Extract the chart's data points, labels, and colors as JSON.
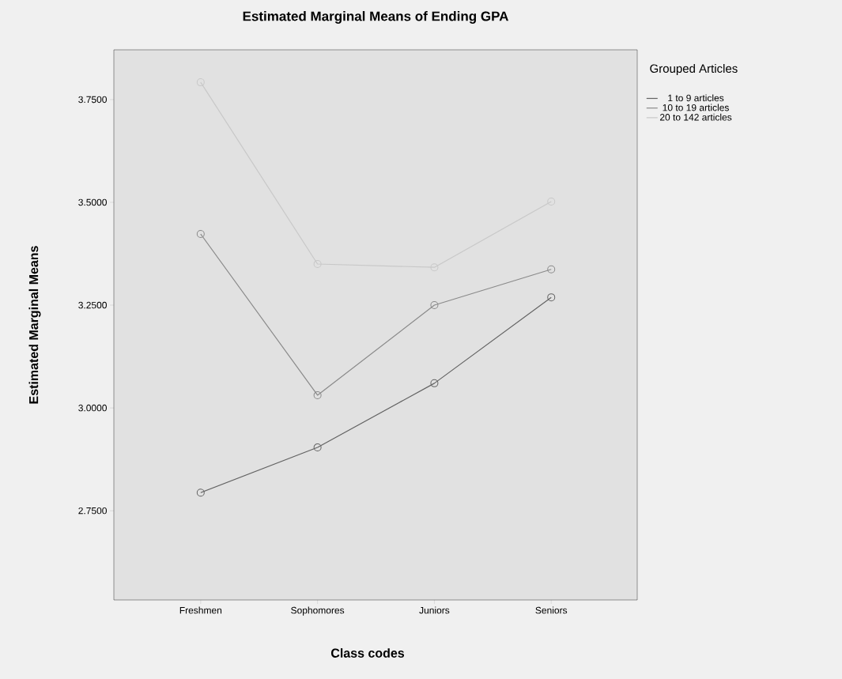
{
  "chart_data": {
    "type": "line",
    "title": "Estimated Marginal Means of Ending GPA",
    "xlabel": "Class codes",
    "ylabel": "Estimated Marginal Means",
    "legend_title": "Grouped Articles",
    "categories": [
      "Freshmen",
      "Sophomores",
      "Juniors",
      "Seniors"
    ],
    "series": [
      {
        "name": "1 to 9 articles",
        "color": "#626262",
        "values": [
          2.794,
          2.904,
          3.06,
          3.269
        ]
      },
      {
        "name": "10 to 19 articles",
        "color": "#8a8a8a",
        "values": [
          3.423,
          3.031,
          3.25,
          3.337
        ]
      },
      {
        "name": "20 to 142 articles",
        "color": "#c8c8c8",
        "values": [
          3.792,
          3.35,
          3.342,
          3.502
        ]
      }
    ],
    "ylim": [
      2.533,
      3.871
    ],
    "yticks": [
      {
        "value": 2.75,
        "label": "2.7500"
      },
      {
        "value": 3.0,
        "label": "3.0000"
      },
      {
        "value": 3.25,
        "label": "3.2500"
      },
      {
        "value": 3.5,
        "label": "3.5000"
      },
      {
        "value": 3.75,
        "label": "3.7500"
      }
    ],
    "grid": false,
    "legend": "right",
    "marker": "circle",
    "line_style": "solid"
  }
}
